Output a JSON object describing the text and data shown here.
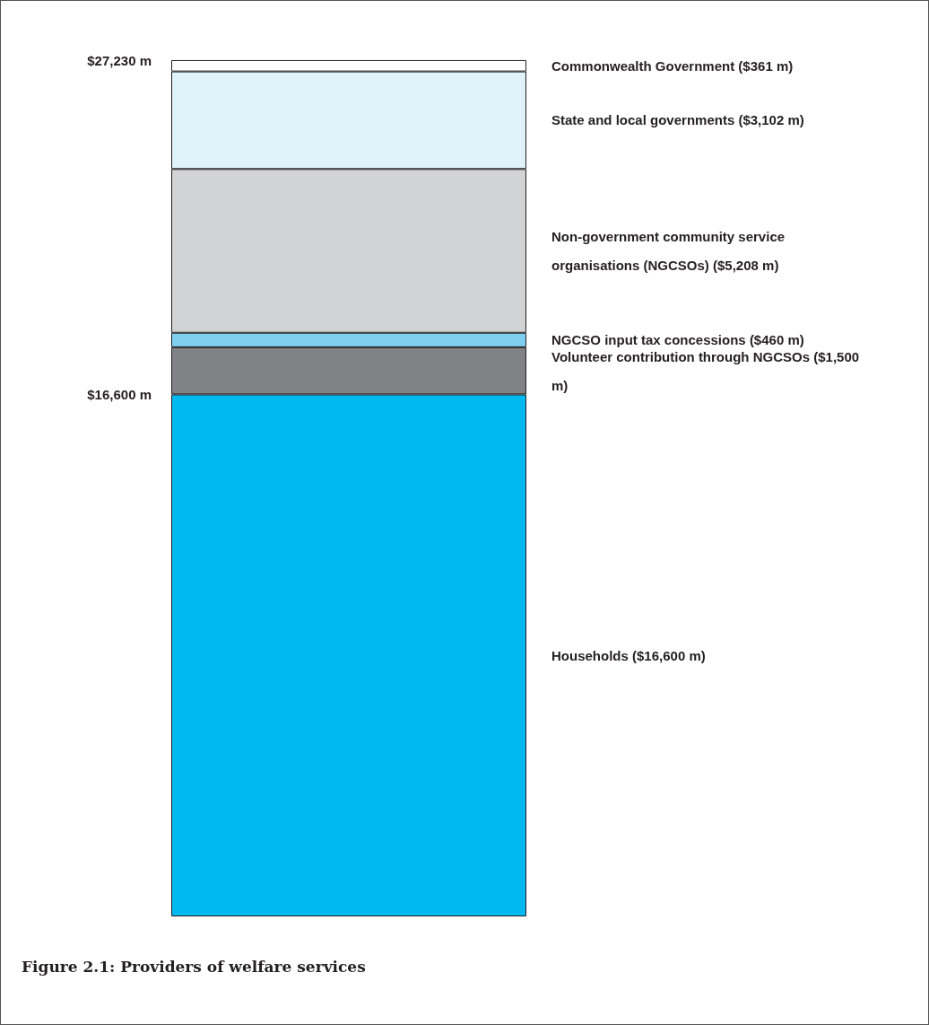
{
  "chart_data": {
    "type": "bar",
    "title": "Figure 2.1: Providers of welfare services",
    "stacked": true,
    "categories": [
      null
    ],
    "ylim": [
      0,
      27230
    ],
    "yticks": [
      {
        "value": 16600,
        "label": "$16,600 m"
      },
      {
        "value": 27230,
        "label": "$27,230 m"
      }
    ],
    "series": [
      {
        "name": "Households ($16,600 m)",
        "color": "#00b9f0",
        "values": [
          16600
        ]
      },
      {
        "name": "Volunteer contribution through NGCSOs ($1,500 m)",
        "color": "#808285",
        "values": [
          1500
        ]
      },
      {
        "name": "NGCSO input tax concessions ($460 m)",
        "color": "#7fcff0",
        "values": [
          460
        ]
      },
      {
        "name": "Non-government community service organisations (NGCSOs) ($5,208 m)",
        "color": "#d1d3d4",
        "values": [
          5208
        ]
      },
      {
        "name": "State and local governments ($3,102 m)",
        "color": "#e0f2fa",
        "values": [
          3102
        ]
      },
      {
        "name": "Commonwealth Government ($361 m)",
        "color": "#ffffff",
        "values": [
          361
        ]
      }
    ]
  }
}
